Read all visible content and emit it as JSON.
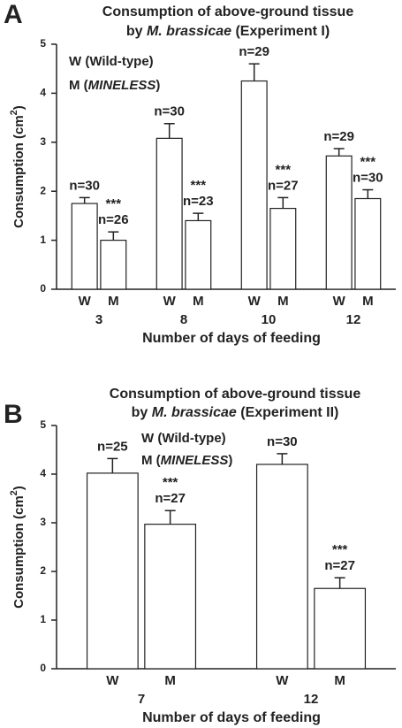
{
  "chart_data": [
    {
      "type": "bar",
      "panel": "A",
      "title": [
        [
          "Consumption of above-ground tissue"
        ],
        [
          "by ",
          "M. brassicae",
          " (Experiment I)"
        ]
      ],
      "legend": [
        [
          "W (Wild-type)"
        ],
        [
          "M (",
          "MINELESS",
          ")"
        ]
      ],
      "y_label": [
        "Consumption (cm",
        "2",
        ")"
      ],
      "x_label": "Number of days of feeding",
      "categories": [
        "3",
        "8",
        "10",
        "12"
      ],
      "series": [
        {
          "name": "W",
          "color": "#ffffff",
          "values": [
            1.75,
            3.08,
            4.25,
            2.72
          ],
          "errors": [
            0.12,
            0.3,
            0.35,
            0.15
          ],
          "labels": [
            "n=30",
            "n=30",
            "n=29",
            "n=29"
          ]
        },
        {
          "name": "M",
          "color": "#ffffff",
          "values": [
            1.0,
            1.4,
            1.65,
            1.85
          ],
          "errors": [
            0.17,
            0.15,
            0.22,
            0.18
          ],
          "labels": [
            "n=26",
            "n=23",
            "n=27",
            "n=30"
          ],
          "significance": [
            "***",
            "***",
            "***",
            "***"
          ]
        }
      ],
      "ylim": [
        0,
        5
      ],
      "yticks": [
        0,
        1,
        2,
        3,
        4,
        5
      ]
    },
    {
      "type": "bar",
      "panel": "B",
      "title": [
        [
          "Consumption of above-ground tissue"
        ],
        [
          "by ",
          "M. brassicae",
          " (Experiment II)"
        ]
      ],
      "legend": [
        [
          "W (Wild-type)"
        ],
        [
          "M (",
          "MINELESS",
          ")"
        ]
      ],
      "y_label": [
        "Consumption (cm",
        "2",
        ")"
      ],
      "x_label": "Number of days of feeding",
      "categories": [
        "7",
        "12"
      ],
      "series": [
        {
          "name": "W",
          "color": "#ffffff",
          "values": [
            4.02,
            4.2
          ],
          "errors": [
            0.3,
            0.22
          ],
          "labels": [
            "n=25",
            "n=30"
          ]
        },
        {
          "name": "M",
          "color": "#ffffff",
          "values": [
            2.97,
            1.65
          ],
          "errors": [
            0.28,
            0.22
          ],
          "labels": [
            "n=27",
            "n=27"
          ],
          "significance": [
            "***",
            "***"
          ]
        }
      ],
      "ylim": [
        0,
        5
      ],
      "yticks": [
        0,
        1,
        2,
        3,
        4,
        5
      ]
    }
  ]
}
